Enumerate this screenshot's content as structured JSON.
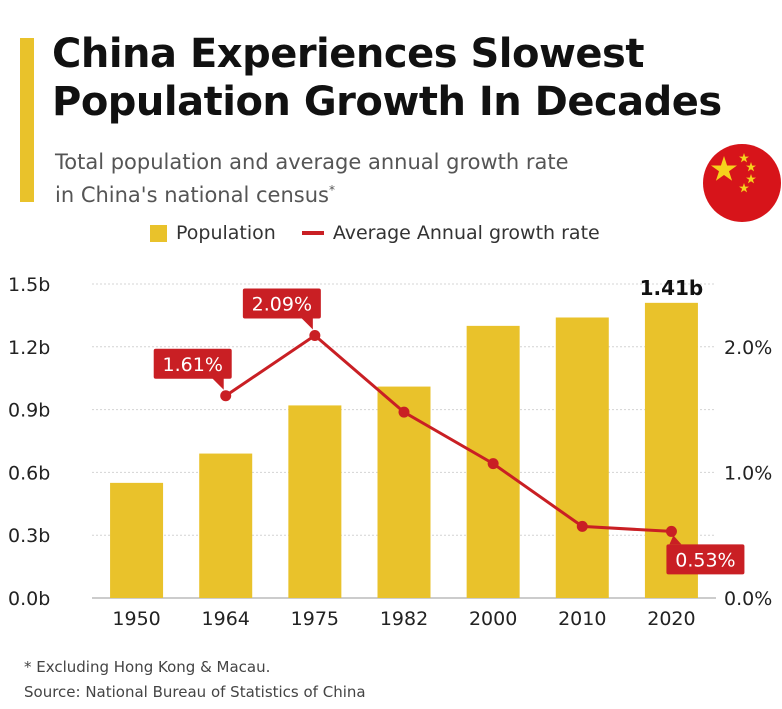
{
  "header": {
    "title_line1": "China Experiences Slowest",
    "title_line2": "Population Growth In Decades",
    "subtitle_line1": "Total population and average annual growth rate",
    "subtitle_line2": "in China's national census",
    "subtitle_mark": "*"
  },
  "legend": {
    "population": "Population",
    "growth": "Average Annual growth rate"
  },
  "footer": {
    "note": "* Excluding Hong Kong & Macau.",
    "source": "Source: National Bureau of Statistics of China"
  },
  "colors": {
    "bar": "#e9c22b",
    "line": "#c91f24",
    "accent": "#e9c22b",
    "flag": "#d7141a",
    "star": "#f5d21c"
  },
  "chart_data": {
    "type": "bar",
    "categories": [
      "1950",
      "1964",
      "1975",
      "1982",
      "2000",
      "2010",
      "2020"
    ],
    "series": [
      {
        "name": "Population",
        "type": "bar",
        "axis": "left",
        "values": [
          0.55,
          0.69,
          0.92,
          1.01,
          1.3,
          1.34,
          1.41
        ]
      },
      {
        "name": "Average Annual growth rate",
        "type": "line",
        "axis": "right",
        "values": [
          null,
          1.61,
          2.09,
          1.48,
          1.07,
          0.57,
          0.53
        ]
      }
    ],
    "y_left": {
      "ticks": [
        "0.0b",
        "0.3b",
        "0.6b",
        "0.9b",
        "1.2b",
        "1.5b"
      ],
      "tick_values": [
        0,
        0.3,
        0.6,
        0.9,
        1.2,
        1.5
      ],
      "range": [
        0,
        1.5
      ]
    },
    "y_right": {
      "ticks": [
        "0.0%",
        "1.0%",
        "2.0%"
      ],
      "tick_values": [
        0,
        1,
        2
      ],
      "range": [
        0,
        2.5
      ]
    },
    "labels": [
      {
        "series": "Population",
        "index": 6,
        "text": "1.41b"
      },
      {
        "series": "Average Annual growth rate",
        "index": 1,
        "text": "1.61%"
      },
      {
        "series": "Average Annual growth rate",
        "index": 2,
        "text": "2.09%"
      },
      {
        "series": "Average Annual growth rate",
        "index": 6,
        "text": "0.53%"
      }
    ],
    "grid": true,
    "legend_position": "top"
  }
}
